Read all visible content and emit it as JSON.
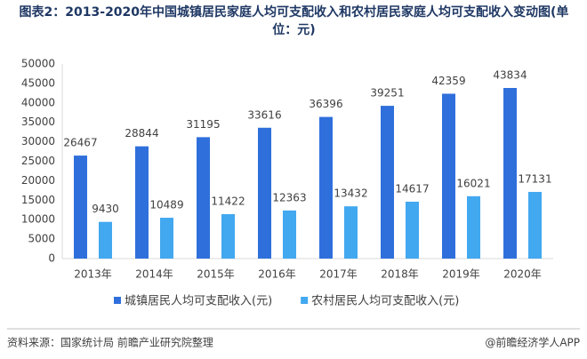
{
  "chart_data": {
    "type": "bar",
    "title": "图表2：2013-2020年中国城镇居民家庭人均可支配收入和农村居民家庭人均可支配收入变动图(单位：元)",
    "categories": [
      "2013年",
      "2014年",
      "2015年",
      "2016年",
      "2017年",
      "2018年",
      "2019年",
      "2020年"
    ],
    "series": [
      {
        "name": "城镇居民人均可支配收入(元)",
        "color": "#2f6fdc",
        "values": [
          26467,
          28844,
          31195,
          33616,
          36396,
          39251,
          42359,
          43834
        ]
      },
      {
        "name": "农村居民人均可支配收入(元)",
        "color": "#42a8f0",
        "values": [
          9430,
          10489,
          11422,
          12363,
          13432,
          14617,
          16021,
          17131
        ]
      }
    ],
    "ylim": [
      0,
      50000
    ],
    "yticks": [
      0,
      5000,
      10000,
      15000,
      20000,
      25000,
      30000,
      35000,
      40000,
      45000,
      50000
    ],
    "grid": false,
    "legend": "bottom",
    "source": "资料来源：国家统计局 前瞻产业研究院整理",
    "credit": "@前瞻经济学人APP"
  }
}
